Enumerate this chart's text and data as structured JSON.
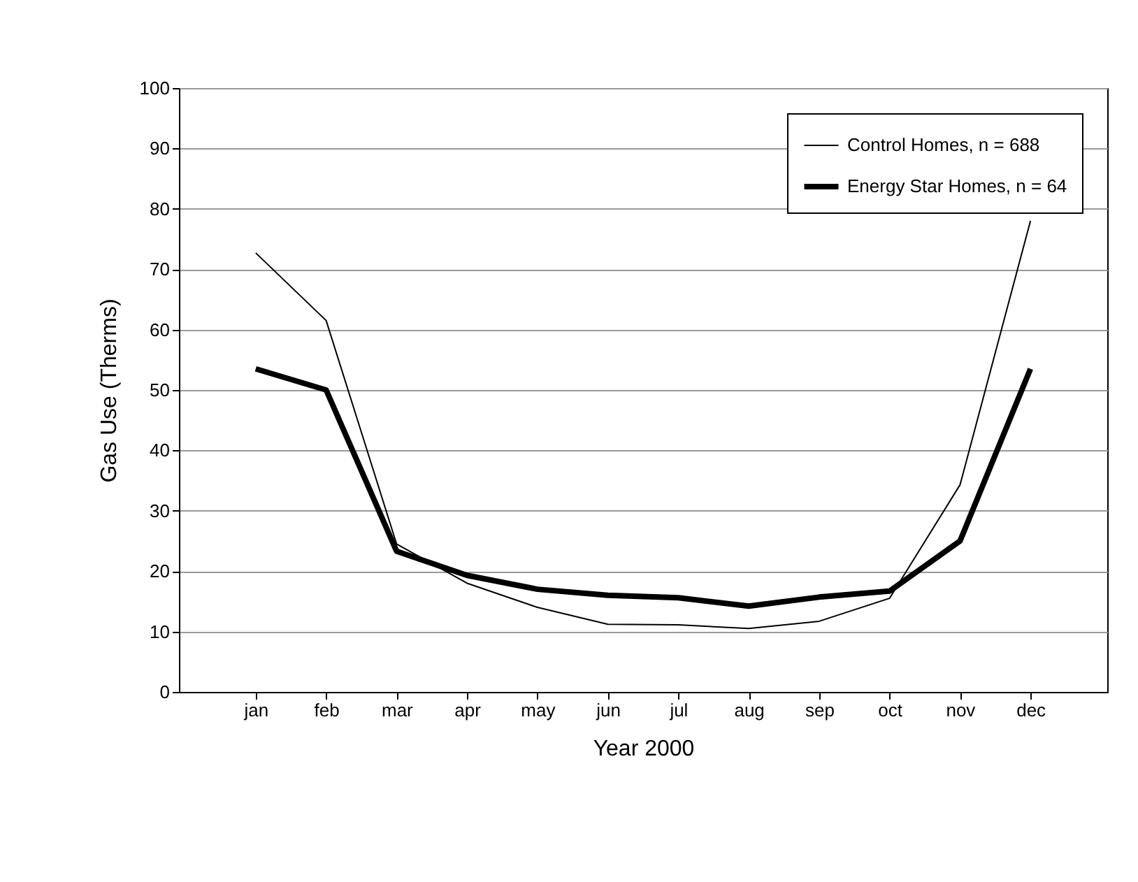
{
  "chart_data": {
    "type": "line",
    "xlabel": "Year 2000",
    "ylabel": "Gas Use (Therms)",
    "categories": [
      "jan",
      "feb",
      "mar",
      "apr",
      "may",
      "jun",
      "jul",
      "aug",
      "sep",
      "oct",
      "nov",
      "dec"
    ],
    "series": [
      {
        "name": "Control Homes, n = 688",
        "color": "#000000",
        "values": [
          72.7,
          61.5,
          24.5,
          18,
          14,
          11.2,
          11.1,
          10.5,
          11.7,
          15.5,
          34.3,
          78
        ]
      },
      {
        "name": "Energy Star Homes, n = 64",
        "color": "#000000",
        "values": [
          53.5,
          50,
          23.3,
          19.3,
          17,
          16,
          15.6,
          14.2,
          15.7,
          16.7,
          25,
          53.5
        ]
      }
    ],
    "ylim": [
      0,
      100
    ],
    "yticks": [
      0,
      10,
      20,
      30,
      40,
      50,
      60,
      70,
      80,
      90,
      100
    ],
    "grid": "y",
    "legend": "top right",
    "marker": "none",
    "line_style": "solid"
  }
}
